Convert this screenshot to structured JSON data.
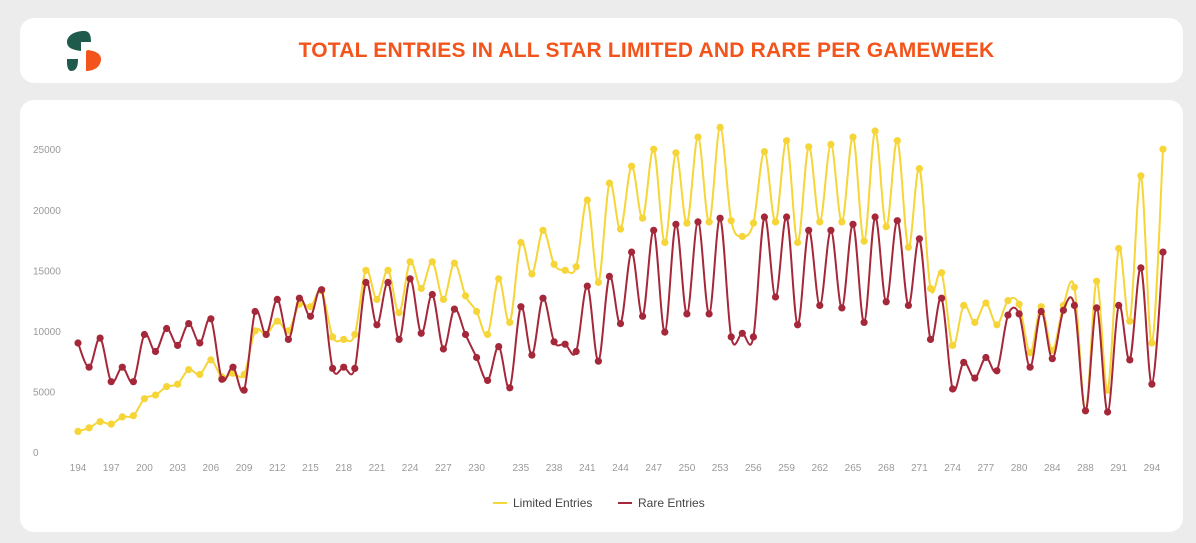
{
  "header": {
    "title": "TOTAL ENTRIES IN ALL STAR LIMITED AND RARE PER GAMEWEEK",
    "logo_icon": "sorare-s-logo-icon",
    "logo_colors": [
      "#1f5b4c",
      "#f2541b"
    ]
  },
  "chart_data": {
    "type": "line",
    "title": "TOTAL ENTRIES IN ALL STAR LIMITED AND RARE PER GAMEWEEK",
    "xlabel": "",
    "ylabel": "",
    "ylim": [
      0,
      25000
    ],
    "yticks": [
      0,
      5000,
      10000,
      15000,
      20000,
      25000
    ],
    "grid": false,
    "legend_position": "bottom-center",
    "x_tick_labels": [
      "194",
      "197",
      "200",
      "203",
      "206",
      "209",
      "212",
      "215",
      "218",
      "221",
      "224",
      "227",
      "230",
      "235",
      "238",
      "241",
      "244",
      "247",
      "250",
      "253",
      "256",
      "259",
      "262",
      "265",
      "268",
      "271",
      "274",
      "277",
      "280",
      "284",
      "288",
      "291",
      "294"
    ],
    "series": [
      {
        "name": "Limited Entries",
        "color": "#f5d538",
        "values": [
          1700,
          2000,
          2500,
          2300,
          2900,
          3000,
          4400,
          4700,
          5400,
          5600,
          6800,
          6400,
          7600,
          6200,
          6500,
          6400,
          10000,
          9700,
          10800,
          10000,
          12200,
          12000,
          13300,
          9500,
          9300,
          9700,
          15000,
          12600,
          15000,
          11500,
          15700,
          13500,
          15700,
          12600,
          15600,
          12900,
          11600,
          9700,
          14300,
          10700,
          17300,
          14700,
          18300,
          15500,
          15000,
          15300,
          20800,
          14000,
          22200,
          18400,
          23600,
          19300,
          25000,
          17300,
          24700,
          18900,
          26000,
          19000,
          26800,
          19100,
          17800,
          18900,
          24800,
          19000,
          25700,
          17300,
          25200,
          19000,
          25400,
          19000,
          26000,
          17400,
          26500,
          18600,
          25700,
          16900,
          23400,
          13500,
          14800,
          8800,
          12100,
          10700,
          12300,
          10500,
          12500,
          12200,
          8200,
          12000,
          8400,
          12100,
          13600,
          3400,
          14100,
          5100,
          16800,
          10800,
          22800,
          9000,
          25000
        ]
      },
      {
        "name": "Rare Entries",
        "color": "#a5283a",
        "values": [
          9000,
          7000,
          9400,
          5800,
          7000,
          5800,
          9700,
          8300,
          10200,
          8800,
          10600,
          9000,
          11000,
          6000,
          7000,
          5100,
          11600,
          9700,
          12600,
          9300,
          12700,
          11200,
          13400,
          6900,
          7000,
          6900,
          14000,
          10500,
          14000,
          9300,
          14300,
          9800,
          13000,
          8500,
          11800,
          9700,
          7800,
          5900,
          8700,
          5300,
          12000,
          8000,
          12700,
          9100,
          8900,
          8300,
          13700,
          7500,
          14500,
          10600,
          16500,
          11200,
          18300,
          9900,
          18800,
          11400,
          19000,
          11400,
          19300,
          9500,
          9800,
          9500,
          19400,
          12800,
          19400,
          10500,
          18300,
          12100,
          18300,
          11900,
          18800,
          10700,
          19400,
          12400,
          19100,
          12100,
          17600,
          9300,
          12700,
          5200,
          7400,
          6100,
          7800,
          6700,
          11300,
          11400,
          7000,
          11600,
          7700,
          11700,
          12100,
          3400,
          11900,
          3300,
          12100,
          7600,
          15200,
          5600,
          16500
        ]
      }
    ]
  },
  "legend": {
    "items": [
      {
        "label": "Limited Entries",
        "color": "#f5d538"
      },
      {
        "label": "Rare Entries",
        "color": "#a5283a"
      }
    ]
  }
}
